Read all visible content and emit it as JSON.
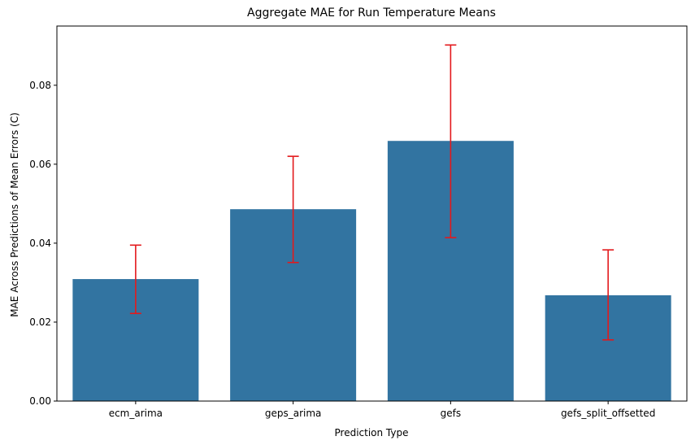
{
  "chart_data": {
    "type": "bar",
    "title": "Aggregate MAE for Run Temperature Means",
    "xlabel": "Prediction Type",
    "ylabel": "MAE Across Predictions of Mean Errors (C)",
    "categories": [
      "ecm_arima",
      "geps_arima",
      "gefs",
      "gefs_split_offsetted"
    ],
    "values": [
      0.0309,
      0.0486,
      0.0659,
      0.0268
    ],
    "error_low": [
      0.0222,
      0.0351,
      0.0414,
      0.0155
    ],
    "error_high": [
      0.0395,
      0.062,
      0.0902,
      0.0383
    ],
    "ylim": [
      0,
      0.095
    ],
    "yticks": [
      0.0,
      0.02,
      0.04,
      0.06,
      0.08
    ],
    "ytick_labels": [
      "0.00",
      "0.02",
      "0.04",
      "0.06",
      "0.08"
    ],
    "grid": false,
    "colors": {
      "bar": "#3274a1",
      "error": "#e3191c",
      "axis": "#000000"
    }
  }
}
